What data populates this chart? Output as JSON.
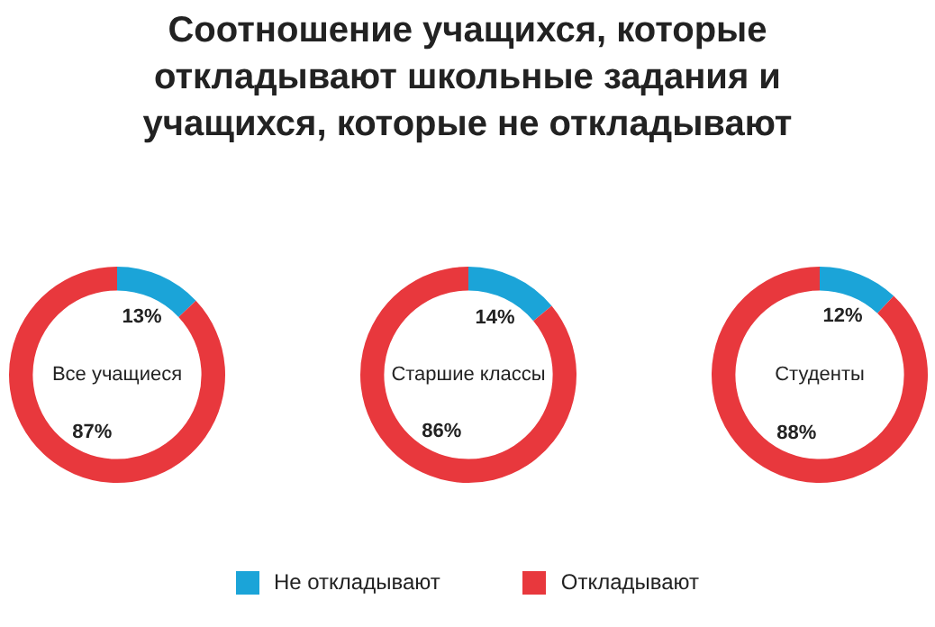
{
  "chart_data": [
    {
      "type": "donut",
      "title": "Соотношение учащихся, которые откладывают школьные задания и учащихся, которые не откладывают",
      "categories": [
        "Не откладывают",
        "Откладывают"
      ],
      "values": [
        13,
        87
      ],
      "colors": [
        "#1ba4d8",
        "#e8383d"
      ],
      "value_labels": [
        "13%",
        "87%"
      ],
      "annotations": [
        "Все учащиеся"
      ],
      "legend": "bottom"
    },
    {
      "type": "donut",
      "categories": [
        null,
        null
      ],
      "values": [
        14,
        86
      ],
      "colors": [
        "#1ba4d8",
        "#e8383d"
      ],
      "value_labels": [
        "14%",
        "86%"
      ],
      "annotations": [
        "Старшие классы"
      ]
    },
    {
      "type": "donut",
      "categories": [
        null,
        null
      ],
      "values": [
        12,
        88
      ],
      "colors": [
        "#1ba4d8",
        "#e8383d"
      ],
      "value_labels": [
        "12%",
        "88%"
      ],
      "annotations": [
        "Студенты"
      ]
    }
  ]
}
